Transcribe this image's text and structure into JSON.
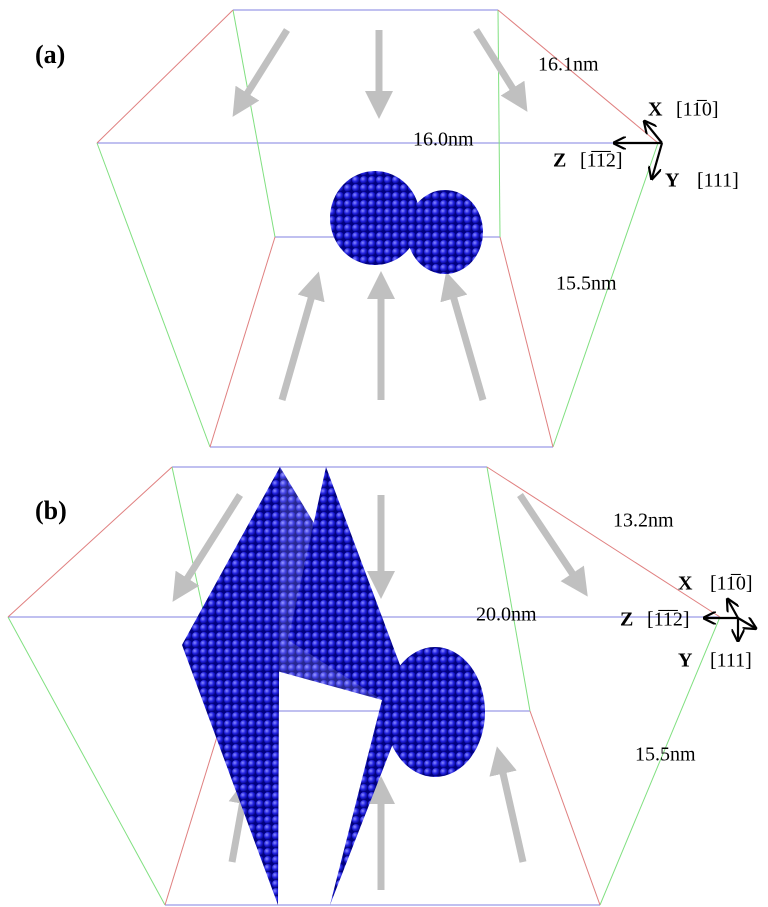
{
  "panels": [
    {
      "label": "(a)",
      "dims": [
        "16.1nm",
        "16.0nm",
        "15.5nm"
      ],
      "axes": [
        {
          "letter": "X",
          "index": "[11̅0]"
        },
        {
          "letter": "Z",
          "index": "[1̅1̅2]"
        },
        {
          "letter": "Y",
          "index": "[111]"
        }
      ]
    },
    {
      "label": "(b)",
      "dims": [
        "13.2nm",
        "20.0nm",
        "15.5nm"
      ],
      "axes": [
        {
          "letter": "X",
          "index": "[11̅0]"
        },
        {
          "letter": "Z",
          "index": "[1̅1̅2]"
        },
        {
          "letter": "Y",
          "index": "[111]"
        }
      ]
    }
  ]
}
